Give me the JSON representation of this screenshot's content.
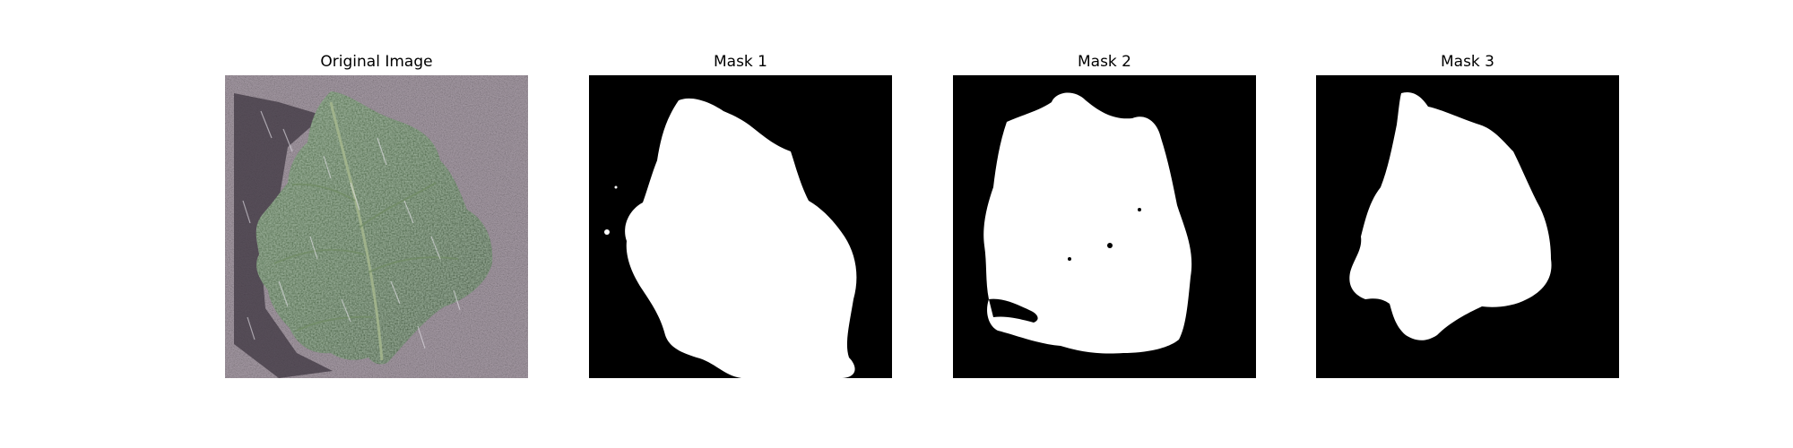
{
  "panels": [
    {
      "title": "Original Image",
      "kind": "photo"
    },
    {
      "title": "Mask 1",
      "kind": "mask"
    },
    {
      "title": "Mask 2",
      "kind": "mask"
    },
    {
      "title": "Mask 3",
      "kind": "mask"
    }
  ],
  "colors": {
    "background": "#ffffff",
    "mask_background": "#000000",
    "mask_foreground": "#ffffff",
    "leaf_dark": "#2d4a26",
    "leaf_light": "#5e7c55",
    "surface": "#968d96",
    "shadow": "#4a4249"
  }
}
